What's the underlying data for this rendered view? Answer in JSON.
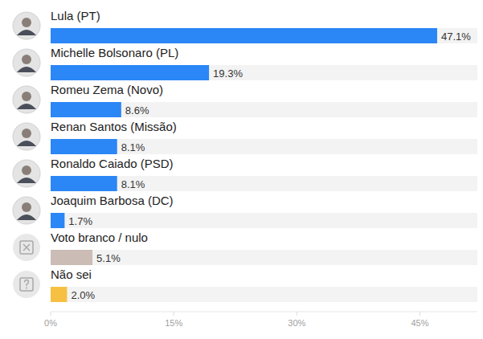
{
  "chart_data": {
    "type": "bar",
    "orientation": "horizontal",
    "categories": [
      "Lula (PT)",
      "Michelle Bolsonaro (PL)",
      "Romeu Zema (Novo)",
      "Renan Santos (Missão)",
      "Ronaldo Caiado (PSD)",
      "Joaquim Barbosa (DC)",
      "Voto branco / nulo",
      "Não sei"
    ],
    "values": [
      47.1,
      19.3,
      8.6,
      8.1,
      8.1,
      1.7,
      5.1,
      2.0
    ],
    "value_labels": [
      "47.1%",
      "19.3%",
      "8.6%",
      "8.1%",
      "8.1%",
      "1.7%",
      "5.1%",
      "2.0%"
    ],
    "colors": [
      "#2b86f6",
      "#2b86f6",
      "#2b86f6",
      "#2b86f6",
      "#2b86f6",
      "#2b86f6",
      "#cbbdb6",
      "#f6c142"
    ],
    "xlim": [
      0,
      52
    ],
    "xticks": [
      {
        "value": 0,
        "label": "0%"
      },
      {
        "value": 15,
        "label": "15%"
      },
      {
        "value": 30,
        "label": "30%"
      },
      {
        "value": 45,
        "label": "45%"
      }
    ],
    "data_labels": true,
    "grid": false
  }
}
